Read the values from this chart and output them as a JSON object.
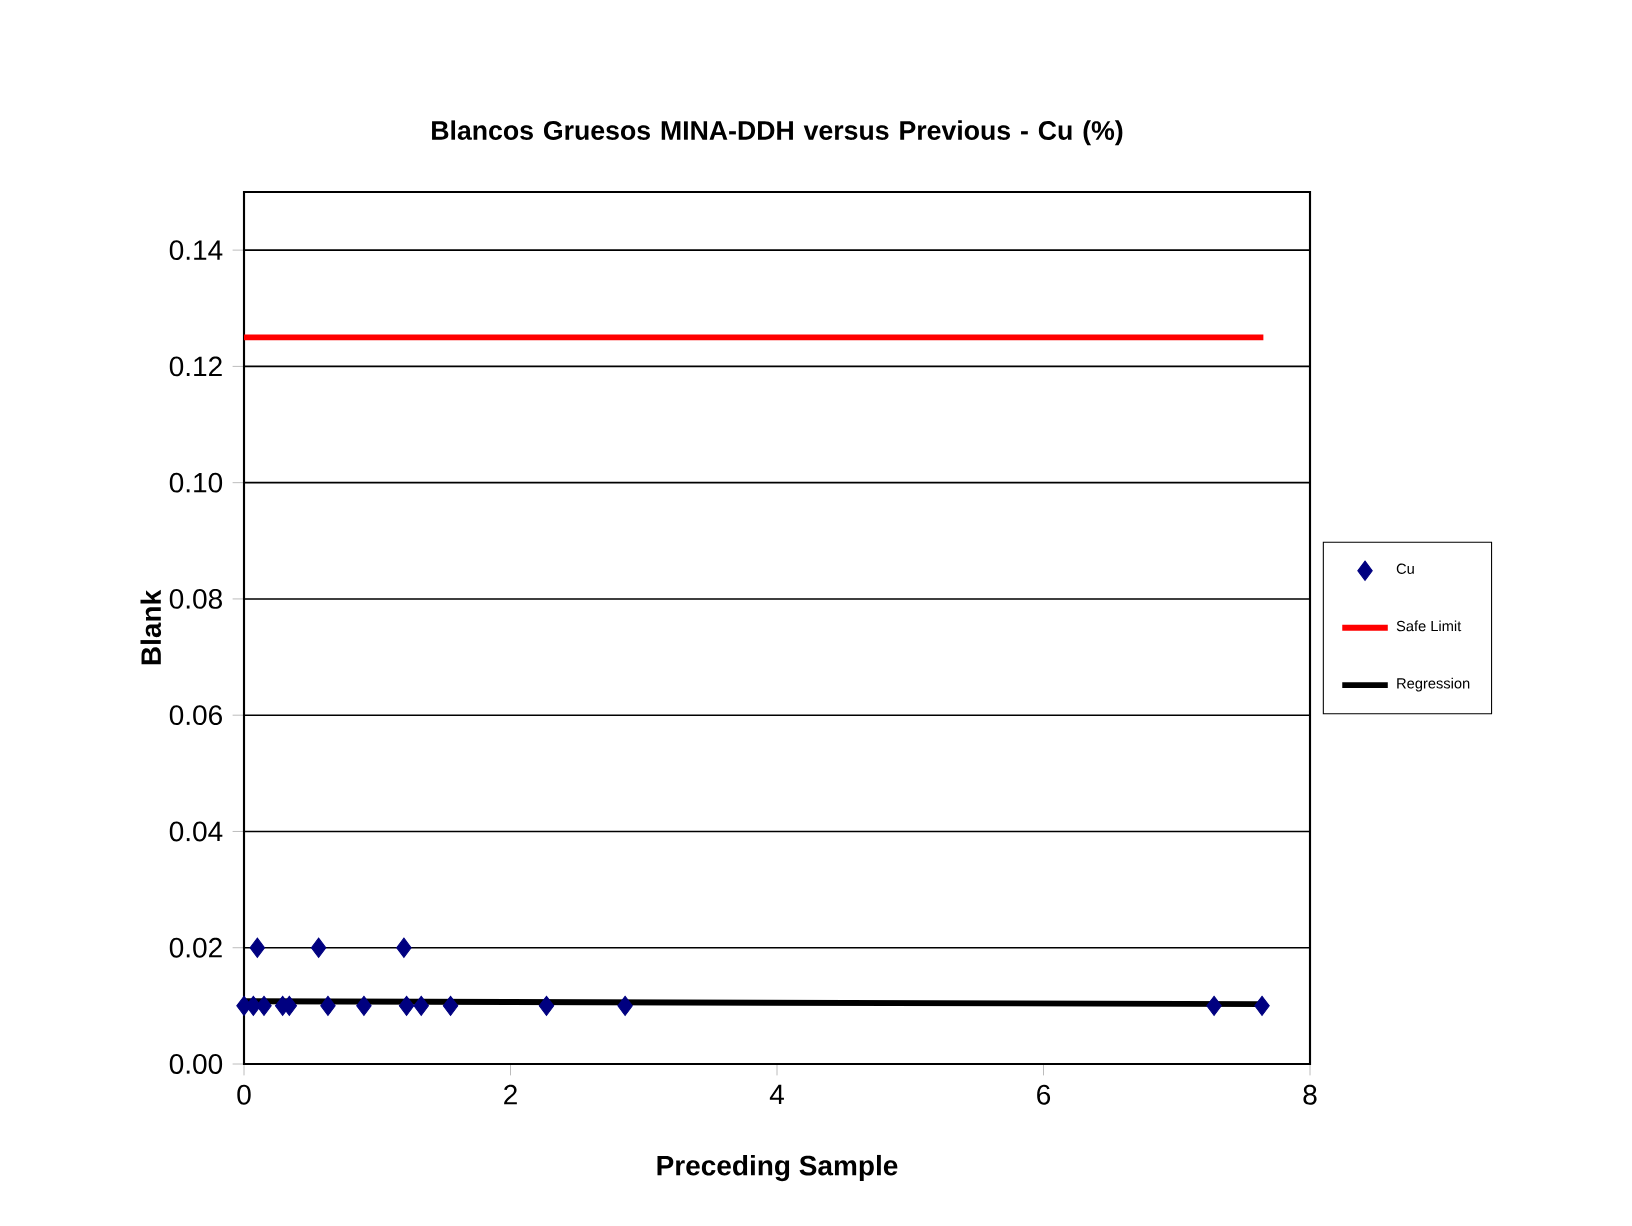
{
  "chart_data": {
    "type": "scatter",
    "title": "Blancos Gruesos MINA-DDH versus Previous - Cu (%)",
    "xlabel": "Preceding Sample",
    "ylabel": "Blank",
    "series": [
      {
        "name": "Cu",
        "color": "#000080",
        "marker": "diamond",
        "x": [
          0,
          0.07,
          0.15,
          0.29,
          0.34,
          0.63,
          0.9,
          1.22,
          1.33,
          1.55,
          2.27,
          2.86,
          7.28,
          7.64,
          0.1,
          0.56,
          1.2
        ],
        "values": [
          0.01,
          0.01,
          0.01,
          0.01,
          0.01,
          0.01,
          0.01,
          0.01,
          0.01,
          0.01,
          0.01,
          0.01,
          0.01,
          0.01,
          0.02,
          0.02,
          0.02
        ]
      },
      {
        "name": "Safe Limit",
        "type": "line",
        "color": "#ff0000",
        "x": [
          0,
          7.65
        ],
        "values": [
          0.125,
          0.125
        ]
      },
      {
        "name": "Regression",
        "type": "line",
        "color": "#000000",
        "x": [
          0,
          7.64
        ],
        "values": [
          0.0108,
          0.0103
        ]
      }
    ],
    "xlim": [
      0,
      8
    ],
    "ylim": [
      0,
      0.15
    ],
    "xticks": [
      0,
      2,
      4,
      6,
      8
    ],
    "yticks": [
      {
        "value": 0,
        "label": "0.00"
      },
      {
        "value": 0.02,
        "label": "0.02"
      },
      {
        "value": 0.04,
        "label": "0.04"
      },
      {
        "value": 0.06,
        "label": "0.06"
      },
      {
        "value": 0.08,
        "label": "0.08"
      },
      {
        "value": 0.1,
        "label": "0.10"
      },
      {
        "value": 0.12,
        "label": "0.12"
      },
      {
        "value": 0.14,
        "label": "0.14"
      }
    ],
    "grid": "y",
    "legend": "right"
  }
}
